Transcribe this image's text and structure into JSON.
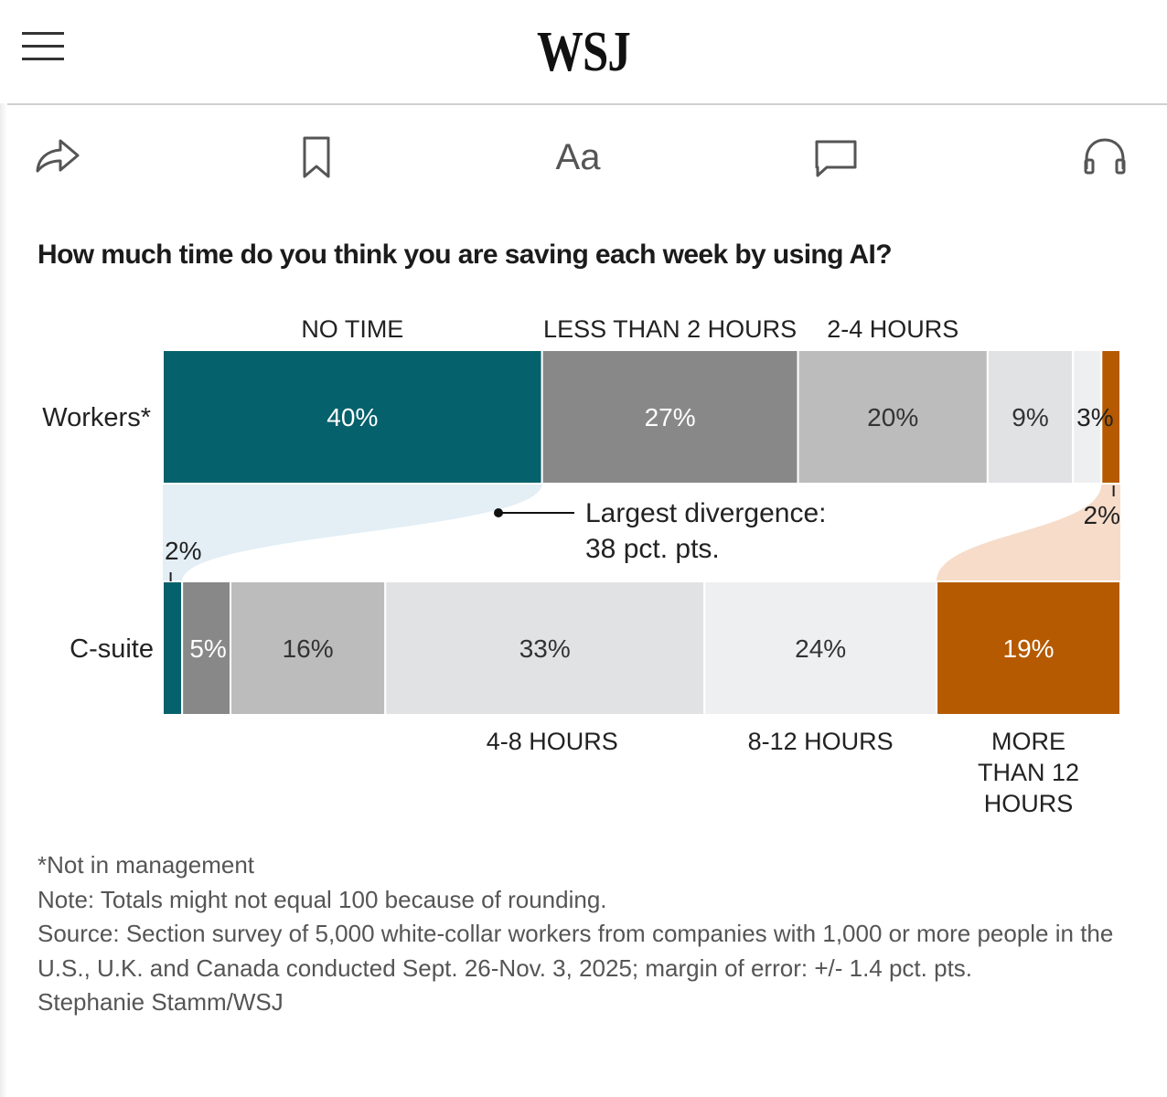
{
  "header": {
    "logo": "WSJ",
    "menu_icon": "hamburger-menu-icon"
  },
  "toolbar": {
    "share_icon": "share-icon",
    "bookmark_icon": "bookmark-icon",
    "text_size_label": "Aa",
    "comment_icon": "comment-icon",
    "listen_icon": "headphones-icon"
  },
  "colors": {
    "no_time": "#05616b",
    "less_than_2": "#888888",
    "two_to_four": "#bcbcbc",
    "four_to_eight": "#e1e2e4",
    "eight_to_twelve": "#eeeff1",
    "more_than_12": "#b55a00",
    "divergence_blue": "#e3eef5",
    "divergence_orange": "#f6dcc9"
  },
  "chart_data": {
    "type": "stacked-bar",
    "title": "How much time do you think you are saving each week by using AI?",
    "categories": [
      "NO TIME",
      "LESS THAN 2 HOURS",
      "2-4 HOURS",
      "4-8 HOURS",
      "8-12 HOURS",
      "MORE THAN 12 HOURS"
    ],
    "category_labels": {
      "top": [
        "NO TIME",
        "LESS THAN 2 HOURS",
        "2-4 HOURS"
      ],
      "bottom": [
        "4-8 HOURS",
        "8-12 HOURS",
        [
          "MORE",
          "THAN 12",
          "HOURS"
        ]
      ]
    },
    "series": [
      {
        "name": "Workers*",
        "values": [
          40,
          27,
          20,
          9,
          3,
          2
        ],
        "labels": [
          "40%",
          "27%",
          "20%",
          "9%",
          "3%",
          "2%"
        ]
      },
      {
        "name": "C-suite",
        "values": [
          2,
          5,
          16,
          33,
          24,
          19
        ],
        "labels": [
          "2%",
          "5%",
          "16%",
          "33%",
          "24%",
          "19%"
        ]
      }
    ],
    "annotation": {
      "line1": "Largest divergence:",
      "line2": "38 pct. pts."
    }
  },
  "notes": {
    "footnote": "*Not in management",
    "note": "Note: Totals might not equal 100 because of rounding.",
    "source": "Source: Section survey of 5,000 white-collar workers from companies with 1,000 or more people in the U.S., U.K. and Canada conducted Sept. 26-Nov. 3, 2025; margin of error: +/- 1.4 pct. pts.",
    "credit": "Stephanie Stamm/WSJ"
  }
}
